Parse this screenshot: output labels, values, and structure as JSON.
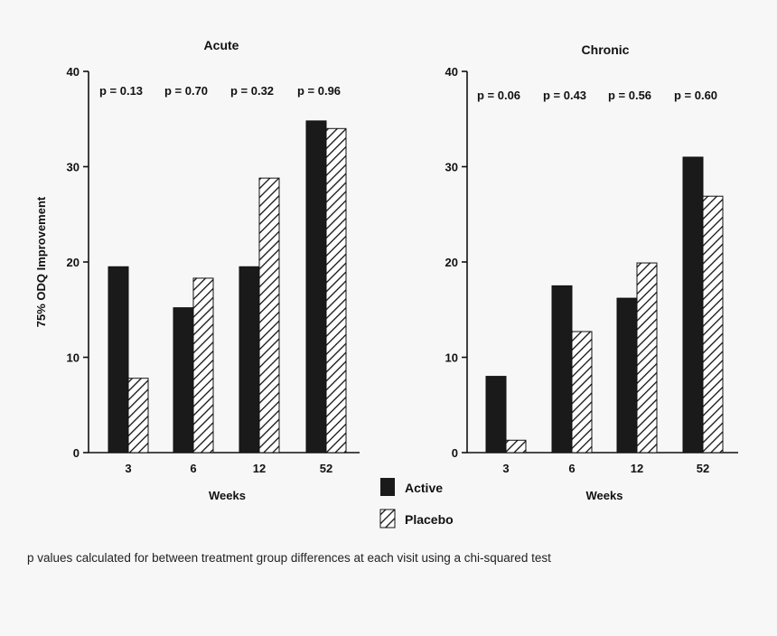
{
  "chart_data": [
    {
      "type": "bar",
      "title": "Acute",
      "xlabel": "Weeks",
      "ylabel": "75% ODQ Improvement",
      "ylim": [
        0,
        40
      ],
      "yticks": [
        0,
        10,
        20,
        30,
        40
      ],
      "categories": [
        "3",
        "6",
        "12",
        "52"
      ],
      "series": [
        {
          "name": "Active",
          "values": [
            19.5,
            15.2,
            19.5,
            34.8
          ]
        },
        {
          "name": "Placebo",
          "values": [
            7.8,
            18.3,
            28.8,
            34.0
          ]
        }
      ],
      "annotations": [
        "p = 0.13",
        "p = 0.70",
        "p = 0.32",
        "p = 0.96"
      ]
    },
    {
      "type": "bar",
      "title": "Chronic",
      "xlabel": "Weeks",
      "ylabel": "",
      "ylim": [
        0,
        40
      ],
      "yticks": [
        0,
        10,
        20,
        30,
        40
      ],
      "categories": [
        "3",
        "6",
        "12",
        "52"
      ],
      "series": [
        {
          "name": "Active",
          "values": [
            8.0,
            17.5,
            16.2,
            31.0
          ]
        },
        {
          "name": "Placebo",
          "values": [
            1.3,
            12.7,
            19.9,
            26.9
          ]
        }
      ],
      "annotations": [
        "p = 0.06",
        "p = 0.43",
        "p = 0.56",
        "p = 0.60"
      ]
    }
  ],
  "legend": {
    "items": [
      "Active",
      "Placebo"
    ],
    "placement": "bottom-center"
  },
  "footnote": "p values calculated for between treatment group differences at each visit using a chi-squared test"
}
